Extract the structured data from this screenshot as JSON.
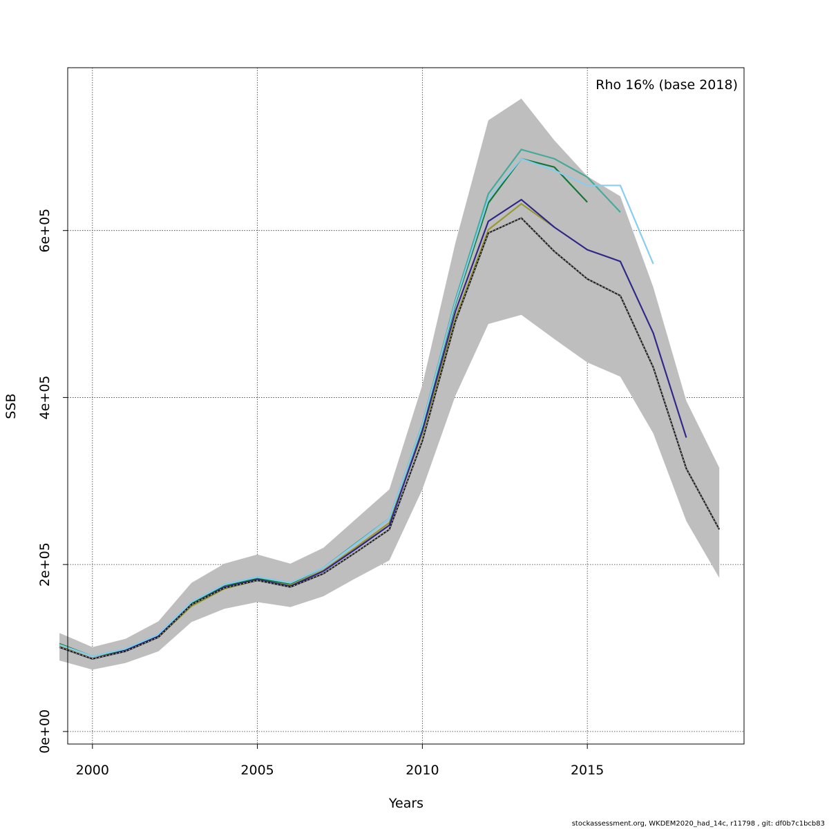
{
  "chart_data": {
    "type": "line",
    "annotation": "Rho 16% (base 2018)",
    "xlabel": "Years",
    "ylabel": "SSB",
    "xlim": [
      1999.25,
      2019.75
    ],
    "ylim": [
      -15000,
      795000
    ],
    "xticks": [
      2000,
      2005,
      2010,
      2015
    ],
    "yticks": [
      0,
      200000,
      400000,
      600000
    ],
    "ytick_labels": [
      "0e+00",
      "2e+05",
      "4e+05",
      "6e+05"
    ],
    "grid": true,
    "ribbon": {
      "x": [
        1999,
        2000,
        2001,
        2002,
        2003,
        2004,
        2005,
        2006,
        2007,
        2008,
        2009,
        2010,
        2011,
        2012,
        2013,
        2014,
        2015,
        2016,
        2017,
        2018,
        2019
      ],
      "lower": [
        85000,
        74000,
        82000,
        96000,
        131000,
        147000,
        155000,
        149000,
        162000,
        184000,
        205000,
        290000,
        402000,
        488000,
        499000,
        470000,
        442000,
        425000,
        357000,
        252000,
        184000
      ],
      "upper": [
        118000,
        101000,
        111000,
        132000,
        178000,
        201000,
        212000,
        201000,
        220000,
        255000,
        290000,
        415000,
        585000,
        732000,
        758000,
        708000,
        665000,
        641000,
        532000,
        396000,
        316000
      ],
      "color": "#bebebe"
    },
    "series": [
      {
        "color": "#1e1e1e",
        "dashed": true,
        "x": [
          1999,
          2000,
          2001,
          2002,
          2003,
          2004,
          2005,
          2006,
          2007,
          2008,
          2009,
          2010,
          2011,
          2012,
          2013,
          2014,
          2015,
          2016,
          2017,
          2018,
          2019
        ],
        "values": [
          101000,
          87000,
          96000,
          113000,
          152000,
          172000,
          181000,
          173000,
          189000,
          215000,
          242000,
          348000,
          491000,
          597000,
          615000,
          575000,
          542000,
          522000,
          436000,
          315000,
          242000
        ]
      },
      {
        "color": "#2e2888",
        "x": [
          1999,
          2000,
          2001,
          2002,
          2003,
          2004,
          2005,
          2006,
          2007,
          2008,
          2009,
          2010,
          2011,
          2012,
          2013,
          2014,
          2015,
          2016,
          2017,
          2018
        ],
        "values": [
          101000,
          87000,
          97000,
          114000,
          152000,
          173000,
          182000,
          174000,
          192000,
          219000,
          247000,
          360000,
          503000,
          611000,
          637000,
          604000,
          577000,
          563000,
          477000,
          352000
        ]
      },
      {
        "color": "#88ccee",
        "x": [
          1999,
          2000,
          2001,
          2002,
          2003,
          2004,
          2005,
          2006,
          2007,
          2008,
          2009,
          2010,
          2011,
          2012,
          2013,
          2014,
          2015,
          2016,
          2017
        ],
        "values": [
          104000,
          90000,
          99000,
          116000,
          155000,
          176000,
          185000,
          178000,
          196000,
          225000,
          255000,
          367000,
          514000,
          638000,
          686000,
          672000,
          654000,
          654000,
          560000
        ]
      },
      {
        "color": "#44aa99",
        "x": [
          1999,
          2000,
          2001,
          2002,
          2003,
          2004,
          2005,
          2006,
          2007,
          2008,
          2009,
          2010,
          2011,
          2012,
          2013,
          2014,
          2015,
          2016
        ],
        "values": [
          104000,
          90000,
          99000,
          116000,
          155000,
          176000,
          185000,
          178000,
          196000,
          226000,
          255000,
          368000,
          517000,
          644000,
          697000,
          686000,
          664000,
          622000
        ]
      },
      {
        "color": "#117733",
        "x": [
          1999,
          2000,
          2001,
          2002,
          2003,
          2004,
          2005,
          2006,
          2007,
          2008,
          2009,
          2010,
          2011,
          2012,
          2013,
          2014,
          2015
        ],
        "values": [
          105000,
          90000,
          98000,
          115000,
          154000,
          175000,
          183000,
          177000,
          196000,
          226000,
          255000,
          366000,
          512000,
          633000,
          686000,
          676000,
          634000
        ]
      },
      {
        "color": "#999933",
        "x": [
          1999,
          2000,
          2001,
          2002,
          2003,
          2004,
          2005,
          2006,
          2007,
          2008,
          2009,
          2010,
          2011,
          2012,
          2013,
          2014
        ],
        "values": [
          103000,
          90000,
          97000,
          113000,
          150000,
          171000,
          181000,
          175000,
          193000,
          221000,
          250000,
          357000,
          495000,
          601000,
          632000,
          604000
        ]
      }
    ]
  },
  "footer": "stockassessment.org, WKDEM2020_had_14c, r11798 , git: df0b7c1bcb83"
}
